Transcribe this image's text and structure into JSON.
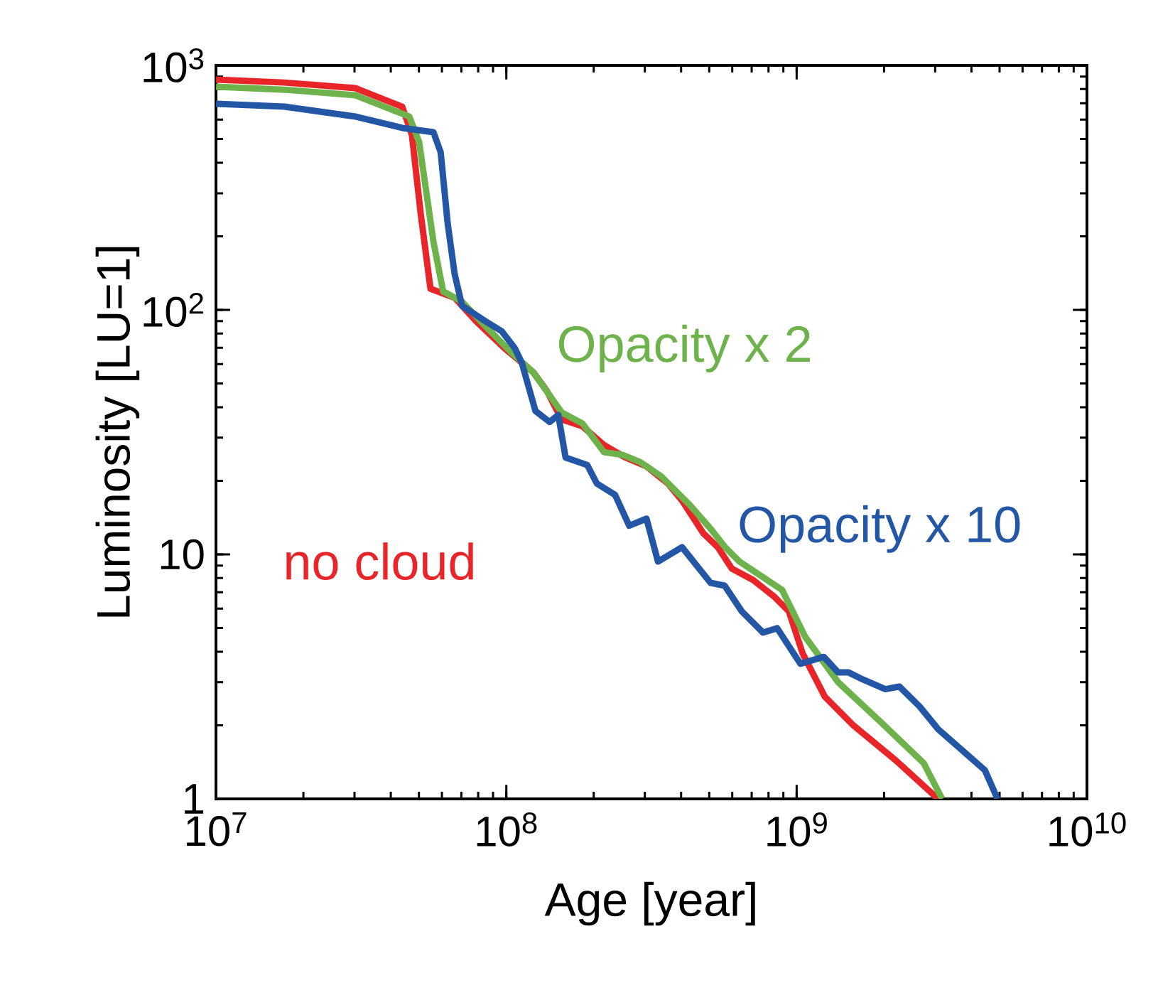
{
  "chart_data": {
    "type": "line",
    "xlabel": "Age [year]",
    "ylabel": "Luminosity [LU=1]",
    "log": "xy",
    "marker": "none",
    "xlim": [
      10000000.0,
      10000000000.0
    ],
    "ylim": [
      1,
      1000
    ],
    "xticks": [
      {
        "value": 10000000.0,
        "label": "10$^{7}$"
      },
      {
        "value": 100000000.0,
        "label": "10$^{8}$"
      },
      {
        "value": 1000000000.0,
        "label": "10$^{9}$"
      },
      {
        "value": 10000000000.0,
        "label": "10$^{10}$"
      }
    ],
    "yticks": [
      1,
      10,
      {
        "value": 100,
        "label": "10$^{2}$"
      },
      {
        "value": 1000,
        "label": "10$^{3}$"
      }
    ],
    "series": [
      {
        "name": "no cloud",
        "color": "#e8262a",
        "x": [
          10000000.0,
          17200000.0,
          30200000.0,
          43800000.0,
          47300000.0,
          50700000.0,
          54800000.0,
          66400000.0,
          78700000.0,
          98600000.0,
          124000000.0,
          138000000.0,
          155000000.0,
          183000000.0,
          217000000.0,
          257000000.0,
          304000000.0,
          360000000.0,
          403000000.0,
          477000000.0,
          535000000.0,
          598000000.0,
          708000000.0,
          839000000.0,
          940000000.0,
          1050000000.0,
          1250000000.0,
          1560000000.0,
          2190000000.0,
          3070000000.0
        ],
        "values": [
          875,
          851,
          807,
          678,
          519,
          248,
          122,
          112,
          89.8,
          69.7,
          55.5,
          46.6,
          35.7,
          33.4,
          28,
          24.9,
          22.9,
          19.5,
          16.6,
          12.2,
          10.7,
          8.75,
          7.86,
          6.7,
          5.85,
          3.92,
          2.62,
          2.01,
          1.44,
          1.0
        ]
      },
      {
        "name": "Opacity x 2",
        "color": "#6db24a",
        "x": [
          10000000.0,
          17200000.0,
          30200000.0,
          46300000.0,
          50100000.0,
          56100000.0,
          60600000.0,
          70400000.0,
          83300000.0,
          104000000.0,
          124000000.0,
          155000000.0,
          183000000.0,
          217000000.0,
          252000000.0,
          288000000.0,
          341000000.0,
          381000000.0,
          427000000.0,
          506000000.0,
          567000000.0,
          635000000.0,
          752000000.0,
          891000000.0,
          1070000000.0,
          1390000000.0,
          1950000000.0,
          2740000000.0,
          3170000000.0
        ],
        "values": [
          818,
          796,
          755,
          618,
          485,
          190,
          119,
          108,
          87.5,
          67.0,
          55.5,
          38.1,
          34.3,
          26.2,
          25.5,
          23.9,
          20.9,
          18.3,
          16.0,
          12.7,
          10.7,
          9.35,
          8.18,
          7.16,
          4.6,
          3.0,
          2.06,
          1.4,
          1.0
        ]
      },
      {
        "name": "Opacity x 10",
        "color": "#2456a6",
        "x": [
          10000000.0,
          17200000.0,
          30200000.0,
          43800000.0,
          56100000.0,
          59400000.0,
          62800000.0,
          66400000.0,
          70400000.0,
          83300000.0,
          96400000.0,
          107000000.0,
          113000000.0,
          126000000.0,
          141000000.0,
          151000000.0,
          160000000.0,
          190000000.0,
          205000000.0,
          237000000.0,
          265000000.0,
          304000000.0,
          333000000.0,
          403000000.0,
          505000000.0,
          565000000.0,
          647000000.0,
          766000000.0,
          857000000.0,
          1030000000.0,
          1240000000.0,
          1390000000.0,
          1510000000.0,
          1690000000.0,
          2020000000.0,
          2260000000.0,
          2650000000.0,
          3070000000.0,
          4450000000.0,
          4920000000.0
        ],
        "values": [
          697,
          678,
          618,
          555,
          533,
          442,
          226,
          140,
          104,
          91,
          81.8,
          69.7,
          60.9,
          38.6,
          34.8,
          37.2,
          24.9,
          23.2,
          19.5,
          17.5,
          13.1,
          14.0,
          9.35,
          10.7,
          7.65,
          7.45,
          5.85,
          4.79,
          4.99,
          3.57,
          3.81,
          3.29,
          3.29,
          3.08,
          2.81,
          2.88,
          2.39,
          1.93,
          1.31,
          1.0
        ]
      }
    ]
  }
}
